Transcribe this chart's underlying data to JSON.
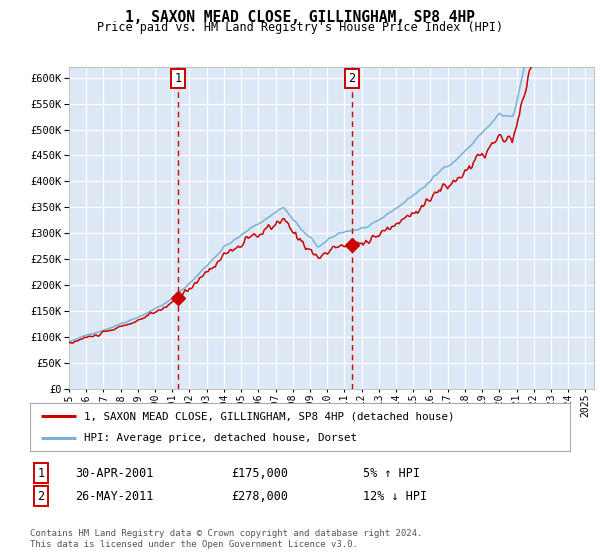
{
  "title": "1, SAXON MEAD CLOSE, GILLINGHAM, SP8 4HP",
  "subtitle": "Price paid vs. HM Land Registry's House Price Index (HPI)",
  "sale1_date": "30-APR-2001",
  "sale1_price": 175000,
  "sale1_label": "1",
  "sale1_year": 2001.33,
  "sale2_date": "26-MAY-2011",
  "sale2_price": 278000,
  "sale2_label": "2",
  "sale2_year": 2011.42,
  "legend_property": "1, SAXON MEAD CLOSE, GILLINGHAM, SP8 4HP (detached house)",
  "legend_hpi": "HPI: Average price, detached house, Dorset",
  "footnote1": "Contains HM Land Registry data © Crown copyright and database right 2024.",
  "footnote2": "This data is licensed under the Open Government Licence v3.0.",
  "table1_date": "30-APR-2001",
  "table1_price": "£175,000",
  "table1_hpi": "5% ↑ HPI",
  "table2_date": "26-MAY-2011",
  "table2_price": "£278,000",
  "table2_hpi": "12% ↓ HPI",
  "bg_color": "#dce8f5",
  "line_color_property": "#cc0000",
  "line_color_hpi": "#7ab0d4",
  "ylim_max": 620000,
  "ylim_min": 0,
  "start_year": 1995,
  "end_year": 2025
}
